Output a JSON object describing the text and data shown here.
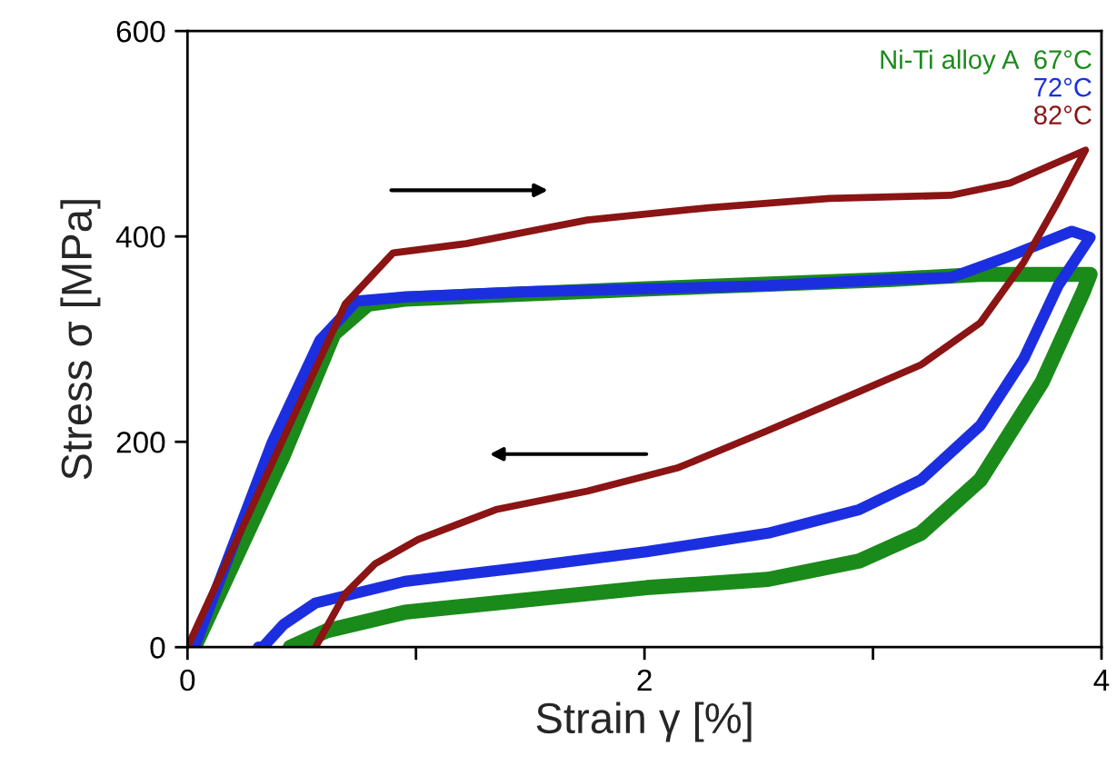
{
  "chart_data": {
    "type": "line",
    "xlabel": "Strain γ [%]",
    "ylabel": "Stress σ [MPa]",
    "legend_title": "Ni-Ti alloy A",
    "legend": "top right",
    "xlim": [
      0,
      4
    ],
    "xticks": [
      0,
      {
        "value": 1,
        "label": null
      },
      2,
      {
        "value": 3,
        "label": null
      },
      4
    ],
    "ylim": [
      0,
      600
    ],
    "yticks": [
      0,
      200,
      400,
      600
    ],
    "grid": false,
    "series": [
      {
        "name": "67°C",
        "color": "#1a8a1a",
        "x": [
          0.03,
          0.42,
          0.64,
          0.79,
          0.95,
          2.01,
          3.07,
          3.47,
          3.95,
          3.92,
          3.74,
          3.47,
          3.21,
          2.94,
          2.54,
          2.01,
          1.48,
          0.95,
          0.61,
          0.45
        ],
        "values": [
          0,
          187,
          305,
          334,
          339,
          349,
          358,
          363,
          363,
          346,
          258,
          163,
          111,
          84,
          66,
          58,
          46,
          34,
          16,
          0
        ]
      },
      {
        "name": "72°C",
        "color": "#1c2fe0",
        "x": [
          0.03,
          0.37,
          0.58,
          0.74,
          0.95,
          1.48,
          2.01,
          2.54,
          3.07,
          3.34,
          3.6,
          3.87,
          3.95,
          3.81,
          3.66,
          3.47,
          3.21,
          2.94,
          2.54,
          2.01,
          1.48,
          0.95,
          0.56,
          0.42,
          0.33,
          0.31
        ],
        "values": [
          0,
          199,
          299,
          337,
          341,
          346,
          349,
          352,
          358,
          360,
          381,
          405,
          399,
          352,
          281,
          216,
          163,
          134,
          111,
          93,
          78,
          64,
          43,
          22,
          0,
          0
        ]
      },
      {
        "name": "82°C",
        "color": "#8b1414",
        "x": [
          0,
          0.69,
          0.9,
          1.22,
          1.75,
          2.28,
          2.81,
          3.34,
          3.6,
          3.93,
          3.81,
          3.66,
          3.47,
          3.21,
          2.94,
          2.54,
          2.15,
          1.75,
          1.35,
          1.01,
          0.82,
          0.69,
          0.56
        ],
        "values": [
          0,
          334,
          384,
          393,
          416,
          428,
          437,
          440,
          452,
          484,
          434,
          375,
          316,
          275,
          249,
          211,
          175,
          152,
          134,
          105,
          81,
          52,
          0
        ]
      }
    ]
  }
}
